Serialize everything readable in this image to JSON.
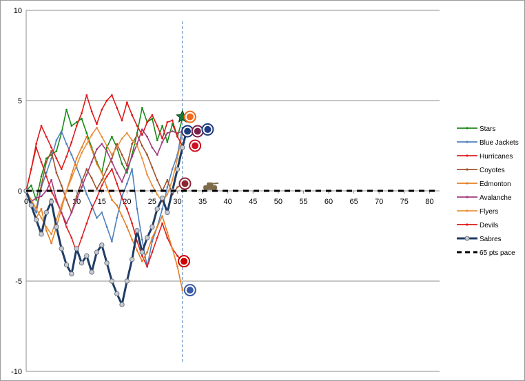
{
  "chart_data": {
    "type": "line",
    "title": "",
    "xlabel": "",
    "ylabel": "",
    "xlim": [
      0,
      82
    ],
    "ylim": [
      -10,
      10
    ],
    "x_ticks": [
      0,
      5,
      10,
      15,
      20,
      25,
      30,
      35,
      40,
      45,
      50,
      55,
      60,
      65,
      70,
      75,
      80
    ],
    "x_tick_labels": [
      "0",
      "5",
      "10",
      "15",
      "20",
      "25",
      "30",
      "35",
      "40",
      "45",
      "50",
      "55",
      "60",
      "65",
      "70",
      "75",
      "80"
    ],
    "y_ticks": [
      -10,
      -5,
      0,
      5,
      10
    ],
    "y_tick_labels": [
      "-10",
      "-5",
      "0",
      "5",
      "10"
    ],
    "grid": "horizontal major gridlines",
    "legend_position": "right",
    "current_game_marker": 31,
    "series": [
      {
        "name": "Stars",
        "color": "#1a8a1a",
        "values": [
          0,
          0.3,
          -0.5,
          0.8,
          1.8,
          2.0,
          2.2,
          3.2,
          4.5,
          3.6,
          3.8,
          4.0,
          3.2,
          2.4,
          1.6,
          1.0,
          2.4,
          3.0,
          2.4,
          1.5,
          1.0,
          2.0,
          3.2,
          4.6,
          3.8,
          4.0,
          2.8,
          3.6,
          2.7,
          3.7,
          3.0,
          4.0
        ]
      },
      {
        "name": "Blue Jackets",
        "color": "#4f81bd",
        "values": [
          0,
          -0.7,
          -1.2,
          0.2,
          1.0,
          1.8,
          2.8,
          3.3,
          2.6,
          2.0,
          1.3,
          0.6,
          -0.2,
          -0.8,
          -1.5,
          -1.2,
          -2.0,
          -2.8,
          -1.5,
          -0.3,
          0.4,
          1.2,
          -1.0,
          -2.7,
          -4.2,
          -2.8,
          -2.0,
          -1.0,
          0.2,
          1.2,
          2.0,
          3.5
        ]
      },
      {
        "name": "Hurricanes",
        "color": "#e02020",
        "values": [
          0,
          1.2,
          2.4,
          1.6,
          0.8,
          0,
          -0.6,
          -1.2,
          -2.0,
          -2.6,
          -3.4,
          -2.6,
          -1.8,
          -1.0,
          -0.4,
          0.3,
          0.8,
          1.2,
          0.4,
          -0.4,
          -1.0,
          -1.8,
          -2.8,
          -3.6,
          -4.2,
          -3.4,
          -2.6,
          -1.8,
          -2.6,
          -3.2,
          -3.6,
          -3.9
        ]
      },
      {
        "name": "Coyotes",
        "color": "#a0522d",
        "values": [
          0,
          -0.5,
          -1.0,
          0.3,
          1.6,
          2.2,
          1.0,
          0.3,
          -0.5,
          -1.2,
          -0.3,
          0.5,
          1.2,
          0.7,
          0.1,
          0.6,
          1.2,
          1.8,
          2.6,
          2.0,
          1.4,
          2.6,
          3.1,
          2.5,
          2.0,
          1.3,
          0.6,
          0,
          0.6,
          -0.2,
          0.2,
          0.4
        ]
      },
      {
        "name": "Edmonton",
        "color": "#e67e22",
        "values": [
          0,
          -0.8,
          -1.5,
          -1.0,
          -2.2,
          -2.9,
          -2.0,
          -1.0,
          0,
          0.9,
          1.8,
          2.4,
          3.0,
          2.3,
          1.5,
          1.0,
          0.2,
          -0.5,
          -0.8,
          -1.4,
          -2.0,
          -2.7,
          -3.3,
          -3.9,
          -3.4,
          -2.6,
          -2.0,
          -1.4,
          -2.3,
          -3.2,
          -4.2,
          -5.5
        ]
      },
      {
        "name": "Avalanche",
        "color": "#a23a7f",
        "values": [
          0,
          -0.6,
          -0.4,
          -0.3,
          0,
          0.6,
          -0.5,
          -1.2,
          -1.8,
          -1.2,
          -0.5,
          0.2,
          0.9,
          1.6,
          2.3,
          2.6,
          2.2,
          1.6,
          1.0,
          0.5,
          1.2,
          1.9,
          2.6,
          3.4,
          3.0,
          2.4,
          2.0,
          2.7,
          3.2,
          3.3,
          3.2,
          3.3
        ]
      },
      {
        "name": "Flyers",
        "color": "#e8903a",
        "values": [
          0,
          -0.5,
          -1.0,
          -1.5,
          -2.0,
          -2.4,
          -1.6,
          -0.8,
          0,
          0.7,
          1.4,
          2.1,
          2.6,
          3.1,
          3.5,
          3.0,
          2.5,
          2.0,
          2.4,
          2.9,
          3.2,
          2.8,
          2.5,
          1.8,
          0.9,
          0.3,
          -0.2,
          -0.6,
          -0.2,
          0.6,
          1.8,
          3.2
        ]
      },
      {
        "name": "Devils",
        "color": "#e01818",
        "values": [
          0,
          1.2,
          2.6,
          3.6,
          3.0,
          2.4,
          1.8,
          1.2,
          1.9,
          2.7,
          3.6,
          4.3,
          5.3,
          4.4,
          3.7,
          4.5,
          5.0,
          5.3,
          4.6,
          3.9,
          4.9,
          4.2,
          3.6,
          3.1,
          3.8,
          4.2,
          3.6,
          2.9,
          3.8,
          3.9,
          3.0,
          2.5
        ]
      },
      {
        "name": "Sabres",
        "color": "#1f3c64",
        "values": [
          0,
          -0.8,
          -1.6,
          -2.4,
          -1.2,
          -0.6,
          -2.0,
          -3.2,
          -4.1,
          -4.6,
          -3.2,
          -4.0,
          -3.6,
          -4.5,
          -3.4,
          -3.0,
          -4.0,
          -5.0,
          -5.7,
          -6.3,
          -5.0,
          -3.8,
          -2.2,
          -3.4,
          -2.6,
          -2.0,
          -1.0,
          -0.4,
          -1.2,
          0,
          1.2,
          2.4,
          3.5
        ]
      },
      {
        "name": "65 pts pace",
        "color": "#000000",
        "dashed": true,
        "values": [
          0,
          0,
          0,
          0,
          0,
          0,
          0,
          0,
          0,
          0,
          0,
          0,
          0,
          0,
          0,
          0,
          0,
          0,
          0,
          0,
          0,
          0,
          0,
          0,
          0,
          0,
          0,
          0,
          0,
          0,
          0,
          0,
          0,
          0,
          0,
          0,
          0,
          0,
          0,
          0,
          0,
          0,
          0,
          0,
          0,
          0,
          0,
          0,
          0,
          0,
          0,
          0,
          0,
          0,
          0,
          0,
          0,
          0,
          0,
          0,
          0,
          0,
          0,
          0,
          0,
          0,
          0,
          0,
          0,
          0,
          0,
          0,
          0,
          0,
          0,
          0,
          0,
          0,
          0,
          0,
          0,
          0,
          0
        ]
      }
    ],
    "team_logos": [
      {
        "team": "Stars",
        "icon": "star-logo-icon",
        "game": 31,
        "value": 4.1
      },
      {
        "team": "Flyers",
        "icon": "flyers-logo-icon",
        "game": 32.5,
        "value": 4.1
      },
      {
        "team": "Blue Jackets",
        "icon": "blue-jackets-logo-icon",
        "game": 32,
        "value": 3.3
      },
      {
        "team": "Avalanche",
        "icon": "avalanche-logo-icon",
        "game": 34,
        "value": 3.3
      },
      {
        "team": "Sabres",
        "icon": "sabres-logo-icon",
        "game": 36,
        "value": 3.4
      },
      {
        "team": "Devils",
        "icon": "devils-logo-icon",
        "game": 33.5,
        "value": 2.5
      },
      {
        "team": "Coyotes",
        "icon": "coyotes-logo-icon",
        "game": 31.5,
        "value": 0.4
      },
      {
        "team": "Coyotes",
        "icon": "tank-icon",
        "game": 36.5,
        "value": 0.2
      },
      {
        "team": "Hurricanes",
        "icon": "hurricanes-logo-icon",
        "game": 31.3,
        "value": -3.9
      },
      {
        "team": "Edmonton",
        "icon": "oilers-logo-icon",
        "game": 32.5,
        "value": -5.5
      }
    ]
  }
}
